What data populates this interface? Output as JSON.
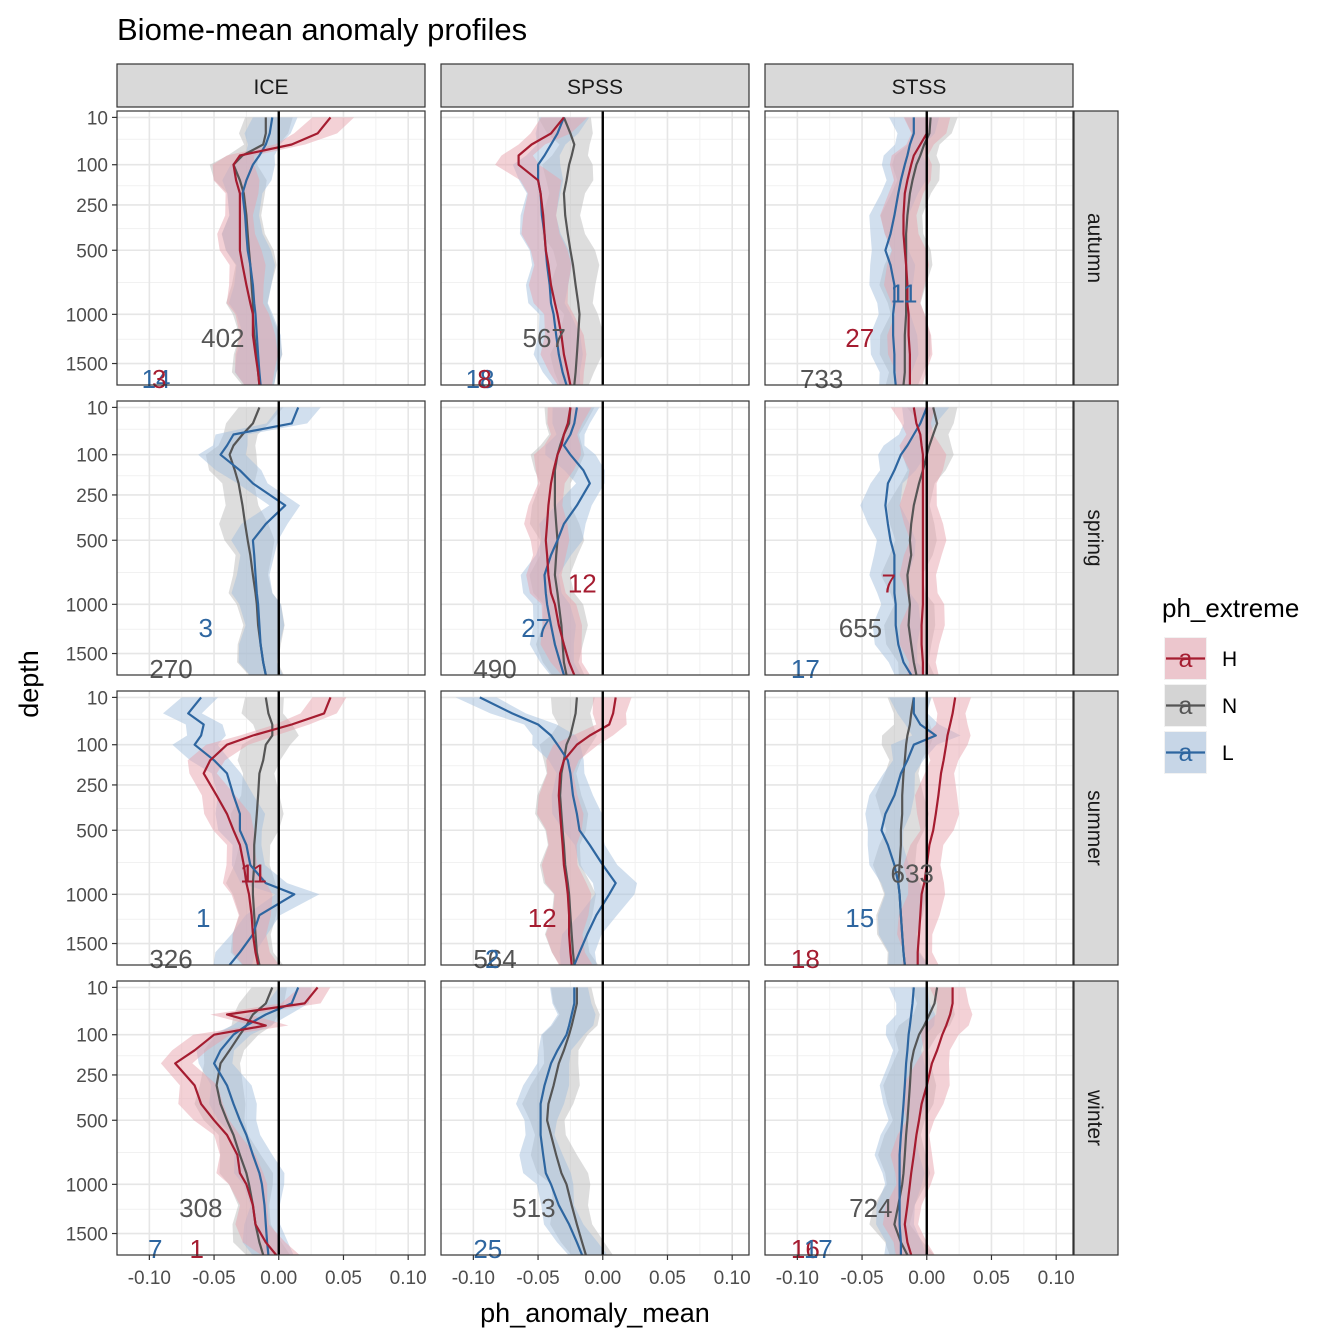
{
  "chart_data": {
    "type": "line",
    "title": "Biome-mean anomaly profiles",
    "xlabel": "ph_anomaly_mean",
    "ylabel": "depth",
    "x_ticks": [
      -0.1,
      -0.05,
      0.0,
      0.05,
      0.1
    ],
    "x_tick_labels": [
      "-0.10",
      "-0.05",
      "0.00",
      "0.05",
      "0.10"
    ],
    "y_ticks": [
      10,
      100,
      250,
      500,
      1000,
      1500
    ],
    "y_tick_labels": [
      "10",
      "100",
      "250",
      "500",
      "1000",
      "1500"
    ],
    "xlim": [
      -0.125,
      0.113
    ],
    "ylim": [
      1750,
      5
    ],
    "y_scale": "reversed-sqrt",
    "grid": true,
    "columns": [
      "ICE",
      "SPSS",
      "STSS"
    ],
    "rows": [
      "autumn",
      "spring",
      "summer",
      "winter"
    ],
    "legend": {
      "title": "ph_extreme",
      "position": "right",
      "entries": [
        {
          "key": "H",
          "label": "H",
          "color": "#A51C30",
          "fill": "#E8A3AE"
        },
        {
          "key": "N",
          "label": "N",
          "color": "#555555",
          "fill": "#BBBBBB"
        },
        {
          "key": "L",
          "label": "L",
          "color": "#2E66A0",
          "fill": "#A4C0DE"
        }
      ]
    },
    "reference_line_x": 0,
    "depths": [
      10,
      30,
      50,
      75,
      100,
      150,
      200,
      300,
      400,
      500,
      600,
      750,
      900,
      1000,
      1200,
      1400,
      1600,
      1750
    ],
    "panels": [
      {
        "row": "autumn",
        "col": "ICE",
        "H": [
          0.04,
          0.03,
          0.01,
          -0.03,
          -0.035,
          -0.033,
          -0.03,
          -0.03,
          -0.03,
          -0.03,
          -0.028,
          -0.025,
          -0.022,
          -0.02,
          -0.02,
          -0.018,
          -0.016,
          -0.015
        ],
        "N": [
          -0.01,
          -0.01,
          -0.012,
          -0.028,
          -0.035,
          -0.03,
          -0.027,
          -0.025,
          -0.024,
          -0.023,
          -0.022,
          -0.021,
          -0.02,
          -0.02,
          -0.019,
          -0.017,
          -0.016,
          -0.015
        ],
        "L": [
          -0.005,
          -0.007,
          -0.01,
          -0.015,
          -0.02,
          -0.025,
          -0.028,
          -0.026,
          -0.025,
          -0.024,
          -0.022,
          -0.02,
          -0.019,
          -0.018,
          -0.017,
          -0.016,
          -0.015,
          -0.014
        ],
        "counts": [
          {
            "v": "402",
            "g": "N",
            "x": -0.06,
            "y": 1230
          },
          {
            "v": "14",
            "g": "L",
            "x": -0.106,
            "y": 1680
          },
          {
            "v": "3",
            "g": "H",
            "x": -0.098,
            "y": 1680
          }
        ]
      },
      {
        "row": "autumn",
        "col": "SPSS",
        "H": [
          -0.03,
          -0.04,
          -0.055,
          -0.065,
          -0.065,
          -0.05,
          -0.048,
          -0.046,
          -0.045,
          -0.044,
          -0.042,
          -0.04,
          -0.037,
          -0.035,
          -0.032,
          -0.03,
          -0.027,
          -0.025
        ],
        "N": [
          -0.03,
          -0.025,
          -0.022,
          -0.024,
          -0.026,
          -0.028,
          -0.03,
          -0.029,
          -0.027,
          -0.025,
          -0.023,
          -0.021,
          -0.019,
          -0.018,
          -0.019,
          -0.02,
          -0.021,
          -0.022
        ],
        "L": [
          -0.03,
          -0.035,
          -0.04,
          -0.045,
          -0.05,
          -0.05,
          -0.048,
          -0.047,
          -0.045,
          -0.044,
          -0.043,
          -0.041,
          -0.04,
          -0.038,
          -0.036,
          -0.034,
          -0.031,
          -0.028
        ],
        "counts": [
          {
            "v": "567",
            "g": "N",
            "x": -0.062,
            "y": 1230
          },
          {
            "v": "18",
            "g": "L",
            "x": -0.106,
            "y": 1680
          },
          {
            "v": "8",
            "g": "H",
            "x": -0.097,
            "y": 1680
          }
        ]
      },
      {
        "row": "autumn",
        "col": "STSS",
        "H": [
          0.0,
          0.0,
          -0.005,
          -0.01,
          -0.012,
          -0.015,
          -0.017,
          -0.018,
          -0.018,
          -0.017,
          -0.016,
          -0.015,
          -0.015,
          -0.014,
          -0.014,
          -0.013,
          -0.013,
          -0.013
        ],
        "N": [
          0.003,
          0.002,
          -0.002,
          -0.005,
          -0.008,
          -0.011,
          -0.013,
          -0.015,
          -0.016,
          -0.016,
          -0.016,
          -0.016,
          -0.016,
          -0.016,
          -0.017,
          -0.017,
          -0.017,
          -0.018
        ],
        "L": [
          -0.01,
          -0.01,
          -0.013,
          -0.015,
          -0.017,
          -0.02,
          -0.022,
          -0.025,
          -0.028,
          -0.032,
          -0.028,
          -0.025,
          -0.025,
          -0.026,
          -0.026,
          -0.025,
          -0.025,
          -0.024
        ],
        "counts": [
          {
            "v": "27",
            "g": "H",
            "x": -0.063,
            "y": 1230
          },
          {
            "v": "11",
            "g": "L",
            "x": -0.028,
            "y": 820
          },
          {
            "v": "733",
            "g": "N",
            "x": -0.098,
            "y": 1680
          }
        ]
      },
      {
        "row": "spring",
        "col": "ICE",
        "N": [
          -0.015,
          -0.02,
          -0.028,
          -0.035,
          -0.038,
          -0.034,
          -0.031,
          -0.028,
          -0.026,
          -0.024,
          -0.022,
          -0.02,
          -0.018,
          -0.017,
          -0.016,
          -0.014,
          -0.012,
          -0.01
        ],
        "L": [
          0.015,
          0.01,
          -0.035,
          -0.04,
          -0.045,
          -0.03,
          -0.02,
          0.005,
          -0.01,
          -0.02,
          -0.019,
          -0.018,
          -0.017,
          -0.016,
          -0.015,
          -0.014,
          -0.012,
          -0.01
        ],
        "counts": [
          {
            "v": "3",
            "g": "L",
            "x": -0.062,
            "y": 1230
          },
          {
            "v": "270",
            "g": "N",
            "x": -0.1,
            "y": 1680
          }
        ]
      },
      {
        "row": "spring",
        "col": "SPSS",
        "H": [
          -0.025,
          -0.027,
          -0.03,
          -0.032,
          -0.035,
          -0.038,
          -0.04,
          -0.042,
          -0.043,
          -0.044,
          -0.043,
          -0.042,
          -0.04,
          -0.037,
          -0.034,
          -0.03,
          -0.026,
          -0.022
        ],
        "N": [
          -0.025,
          -0.026,
          -0.03,
          -0.033,
          -0.035,
          -0.037,
          -0.037,
          -0.037,
          -0.036,
          -0.035,
          -0.036,
          -0.037,
          -0.035,
          -0.034,
          -0.032,
          -0.031,
          -0.03,
          -0.028
        ],
        "L": [
          -0.02,
          -0.022,
          -0.025,
          -0.03,
          -0.025,
          -0.015,
          -0.01,
          -0.02,
          -0.03,
          -0.035,
          -0.04,
          -0.045,
          -0.044,
          -0.043,
          -0.04,
          -0.037,
          -0.033,
          -0.03
        ],
        "counts": [
          {
            "v": "12",
            "g": "H",
            "x": -0.027,
            "y": 820
          },
          {
            "v": "27",
            "g": "L",
            "x": -0.063,
            "y": 1230
          },
          {
            "v": "490",
            "g": "N",
            "x": -0.1,
            "y": 1680
          }
        ]
      },
      {
        "row": "spring",
        "col": "STSS",
        "H": [
          -0.01,
          -0.008,
          -0.005,
          -0.004,
          -0.003,
          -0.003,
          -0.003,
          -0.003,
          -0.003,
          -0.003,
          -0.003,
          -0.003,
          -0.003,
          -0.003,
          -0.004,
          -0.004,
          -0.003,
          -0.003
        ],
        "N": [
          0.005,
          0.008,
          0.005,
          0.002,
          0.0,
          -0.003,
          -0.006,
          -0.01,
          -0.012,
          -0.013,
          -0.012,
          -0.015,
          -0.014,
          -0.013,
          -0.014,
          -0.012,
          -0.01,
          -0.008
        ],
        "L": [
          0.0,
          -0.005,
          -0.01,
          -0.015,
          -0.02,
          -0.025,
          -0.03,
          -0.032,
          -0.03,
          -0.028,
          -0.025,
          -0.025,
          -0.025,
          -0.024,
          -0.024,
          -0.022,
          -0.018,
          -0.012
        ],
        "counts": [
          {
            "v": "7",
            "g": "H",
            "x": -0.035,
            "y": 820
          },
          {
            "v": "655",
            "g": "N",
            "x": -0.068,
            "y": 1230
          },
          {
            "v": "17",
            "g": "L",
            "x": -0.105,
            "y": 1680
          }
        ]
      },
      {
        "row": "summer",
        "col": "ICE",
        "H": [
          0.04,
          0.035,
          0.01,
          -0.02,
          -0.04,
          -0.053,
          -0.058,
          -0.048,
          -0.04,
          -0.035,
          -0.03,
          -0.027,
          -0.025,
          -0.023,
          -0.021,
          -0.02,
          -0.018,
          -0.016
        ],
        "N": [
          -0.01,
          -0.008,
          -0.005,
          -0.005,
          -0.01,
          -0.012,
          -0.015,
          -0.016,
          -0.017,
          -0.018,
          -0.019,
          -0.019,
          -0.02,
          -0.02,
          -0.019,
          -0.018,
          -0.017,
          -0.015
        ],
        "L": [
          -0.06,
          -0.07,
          -0.058,
          -0.06,
          -0.065,
          -0.05,
          -0.04,
          -0.035,
          -0.03,
          -0.03,
          -0.025,
          -0.022,
          -0.01,
          0.012,
          -0.015,
          -0.02,
          -0.03,
          -0.038
        ],
        "counts": [
          {
            "v": "11",
            "g": "H",
            "x": -0.03,
            "y": 820
          },
          {
            "v": "1",
            "g": "L",
            "x": -0.064,
            "y": 1230
          },
          {
            "v": "326",
            "g": "N",
            "x": -0.1,
            "y": 1680
          }
        ]
      },
      {
        "row": "summer",
        "col": "SPSS",
        "H": [
          0.01,
          0.008,
          0.005,
          -0.01,
          -0.02,
          -0.03,
          -0.033,
          -0.034,
          -0.033,
          -0.032,
          -0.031,
          -0.03,
          -0.028,
          -0.027,
          -0.026,
          -0.026,
          -0.025,
          -0.024
        ],
        "N": [
          -0.02,
          -0.021,
          -0.023,
          -0.025,
          -0.028,
          -0.03,
          -0.032,
          -0.033,
          -0.032,
          -0.031,
          -0.03,
          -0.029,
          -0.027,
          -0.026,
          -0.025,
          -0.024,
          -0.023,
          -0.022
        ],
        "L": [
          -0.095,
          -0.07,
          -0.05,
          -0.04,
          -0.035,
          -0.027,
          -0.025,
          -0.023,
          -0.02,
          -0.018,
          -0.01,
          0.0,
          0.01,
          0.005,
          -0.005,
          -0.012,
          -0.018,
          -0.022
        ],
        "counts": [
          {
            "v": "12",
            "g": "H",
            "x": -0.058,
            "y": 1230
          },
          {
            "v": "564",
            "g": "N",
            "x": -0.1,
            "y": 1680
          },
          {
            "v": "2",
            "g": "L",
            "x": -0.091,
            "y": 1680
          }
        ]
      },
      {
        "row": "summer",
        "col": "STSS",
        "H": [
          0.022,
          0.02,
          0.018,
          0.016,
          0.015,
          0.013,
          0.011,
          0.009,
          0.007,
          0.005,
          0.002,
          0.0,
          -0.002,
          -0.004,
          -0.005,
          -0.006,
          -0.007,
          -0.007
        ],
        "N": [
          -0.01,
          -0.012,
          -0.013,
          -0.015,
          -0.016,
          -0.017,
          -0.018,
          -0.019,
          -0.019,
          -0.02,
          -0.02,
          -0.021,
          -0.022,
          -0.021,
          -0.02,
          -0.019,
          -0.018,
          -0.017
        ],
        "L": [
          -0.01,
          -0.01,
          -0.005,
          0.007,
          -0.01,
          -0.015,
          -0.02,
          -0.025,
          -0.032,
          -0.035,
          -0.03,
          -0.025,
          -0.022,
          -0.021,
          -0.02,
          -0.019,
          -0.018,
          -0.017
        ],
        "counts": [
          {
            "v": "633",
            "g": "N",
            "x": -0.028,
            "y": 820
          },
          {
            "v": "15",
            "g": "L",
            "x": -0.063,
            "y": 1230
          },
          {
            "v": "18",
            "g": "H",
            "x": -0.105,
            "y": 1680
          }
        ]
      },
      {
        "row": "winter",
        "col": "ICE",
        "H": [
          0.03,
          0.02,
          -0.04,
          -0.01,
          -0.05,
          -0.065,
          -0.08,
          -0.065,
          -0.06,
          -0.05,
          -0.04,
          -0.032,
          -0.03,
          -0.025,
          -0.02,
          -0.018,
          -0.01,
          -0.002
        ],
        "N": [
          -0.005,
          -0.01,
          -0.02,
          -0.025,
          -0.03,
          -0.038,
          -0.045,
          -0.048,
          -0.045,
          -0.04,
          -0.035,
          -0.03,
          -0.025,
          -0.023,
          -0.02,
          -0.018,
          -0.015,
          -0.012
        ],
        "L": [
          0.015,
          0.01,
          -0.01,
          -0.025,
          -0.035,
          -0.045,
          -0.05,
          -0.04,
          -0.035,
          -0.03,
          -0.025,
          -0.02,
          -0.015,
          -0.013,
          -0.011,
          -0.01,
          -0.009,
          -0.008
        ],
        "counts": [
          {
            "v": "308",
            "g": "N",
            "x": -0.077,
            "y": 1230
          },
          {
            "v": "7",
            "g": "L",
            "x": -0.101,
            "y": 1680
          },
          {
            "v": "1",
            "g": "H",
            "x": -0.069,
            "y": 1680
          }
        ]
      },
      {
        "row": "winter",
        "col": "SPSS",
        "N": [
          -0.02,
          -0.02,
          -0.022,
          -0.024,
          -0.026,
          -0.03,
          -0.034,
          -0.038,
          -0.042,
          -0.043,
          -0.04,
          -0.036,
          -0.032,
          -0.028,
          -0.024,
          -0.02,
          -0.016,
          -0.013
        ],
        "L": [
          -0.022,
          -0.022,
          -0.024,
          -0.026,
          -0.028,
          -0.035,
          -0.04,
          -0.045,
          -0.048,
          -0.048,
          -0.048,
          -0.046,
          -0.044,
          -0.04,
          -0.034,
          -0.026,
          -0.02,
          -0.016
        ],
        "counts": [
          {
            "v": "513",
            "g": "N",
            "x": -0.07,
            "y": 1230
          },
          {
            "v": "25",
            "g": "L",
            "x": -0.1,
            "y": 1680
          }
        ]
      },
      {
        "row": "winter",
        "col": "STSS",
        "H": [
          0.02,
          0.02,
          0.018,
          0.015,
          0.012,
          0.008,
          0.004,
          0.0,
          -0.004,
          -0.006,
          -0.008,
          -0.01,
          -0.012,
          -0.013,
          -0.015,
          -0.017,
          -0.015,
          -0.012
        ],
        "N": [
          0.008,
          0.006,
          0.002,
          -0.002,
          -0.006,
          -0.01,
          -0.012,
          -0.013,
          -0.014,
          -0.015,
          -0.016,
          -0.017,
          -0.018,
          -0.019,
          -0.022,
          -0.025,
          -0.02,
          -0.015
        ],
        "L": [
          -0.01,
          -0.011,
          -0.012,
          -0.013,
          -0.014,
          -0.015,
          -0.016,
          -0.017,
          -0.018,
          -0.019,
          -0.02,
          -0.021,
          -0.021,
          -0.021,
          -0.021,
          -0.021,
          -0.02,
          -0.02
        ],
        "counts": [
          {
            "v": "724",
            "g": "N",
            "x": -0.06,
            "y": 1230
          },
          {
            "v": "16",
            "g": "H",
            "x": -0.105,
            "y": 1680
          },
          {
            "v": "17",
            "g": "L",
            "x": -0.095,
            "y": 1680
          }
        ]
      }
    ]
  }
}
